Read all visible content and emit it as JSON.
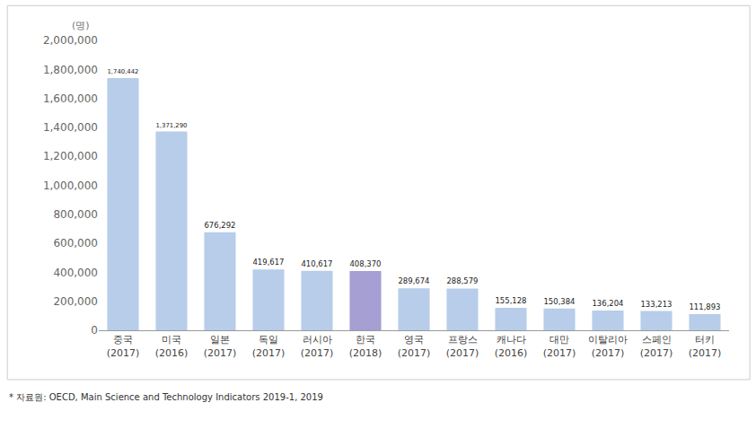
{
  "chart_data": {
    "type": "bar",
    "ylabel": "(명)",
    "categories": [
      "중국\n(2017)",
      "미국\n(2016)",
      "일본\n(2017)",
      "독일\n(2017)",
      "러시아\n(2017)",
      "한국\n(2018)",
      "영국\n(2017)",
      "프랑스\n(2017)",
      "캐나다\n(2016)",
      "대만\n(2017)",
      "이탈리아\n(2017)",
      "스페인\n(2017)",
      "터키\n(2017)"
    ],
    "values": [
      1740442,
      1371290,
      676292,
      419617,
      410617,
      408370,
      289674,
      288579,
      155128,
      150384,
      136204,
      133213,
      111893
    ],
    "value_labels": [
      "1,740,442",
      "1,371,290",
      "676,292",
      "419,617",
      "410,617",
      "408,370",
      "289,674",
      "288,579",
      "155,128",
      "150,384",
      "136,204",
      "133,213",
      "111,893"
    ],
    "colors": [
      "#b7cde9",
      "#b7cde9",
      "#b7cde9",
      "#b7cde9",
      "#b7cde9",
      "#a59fd3",
      "#b7cde9",
      "#b7cde9",
      "#b7cde9",
      "#b7cde9",
      "#b7cde9",
      "#b7cde9",
      "#b7cde9"
    ],
    "data_labels": true,
    "grid": false,
    "ylim": [
      0,
      2000000
    ],
    "yticks": [
      0,
      {
        "value": 200000,
        "label": "200,000"
      },
      {
        "value": 400000,
        "label": "400,000"
      },
      {
        "value": 600000,
        "label": "600,000"
      },
      {
        "value": 800000,
        "label": "800,000"
      },
      {
        "value": 1000000,
        "label": "1,000,000"
      },
      {
        "value": 1200000,
        "label": "1,200,000"
      },
      {
        "value": 1400000,
        "label": "1,400,000"
      },
      {
        "value": 1600000,
        "label": "1,600,000"
      },
      {
        "value": 1800000,
        "label": "1,800,000"
      },
      {
        "value": 2000000,
        "label": "2,000,000"
      }
    ],
    "source": "* 자료원: OECD, Main Science and Technology Indicators 2019-1, 2019"
  }
}
